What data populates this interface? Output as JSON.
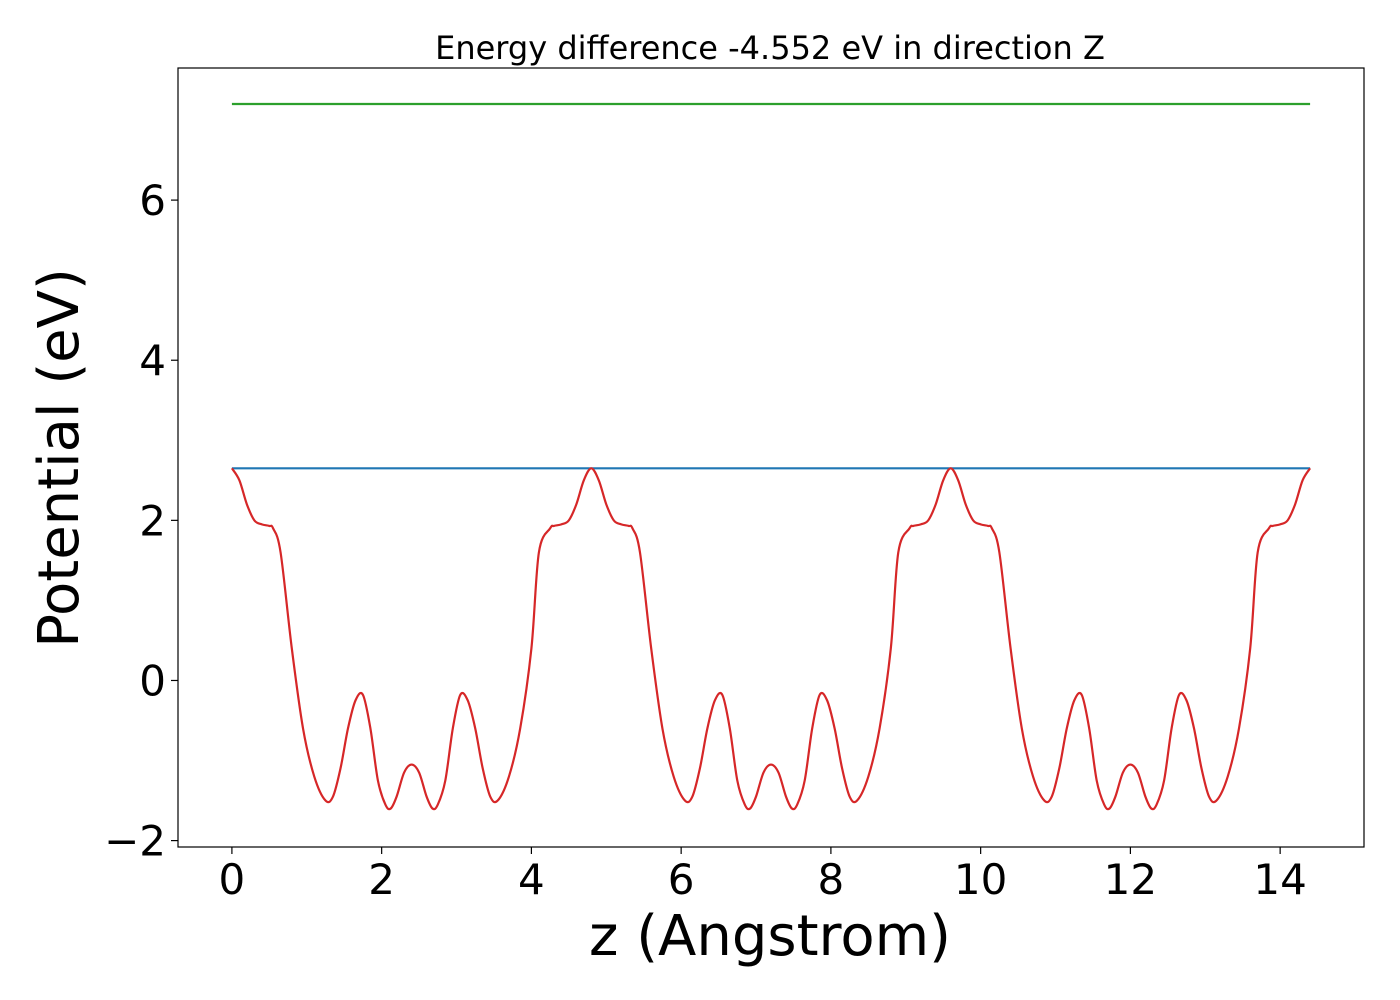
{
  "chart_data": {
    "type": "line",
    "title": "Energy difference -4.552 eV in direction Z",
    "xlabel": "z (Angstrom)",
    "ylabel": "Potential (eV)",
    "xlim": [
      -0.72,
      15.12
    ],
    "ylim": [
      -2.08,
      7.65
    ],
    "xticks": [
      0,
      2,
      4,
      6,
      8,
      10,
      12,
      14
    ],
    "yticks": [
      -2,
      0,
      2,
      4,
      6
    ],
    "xtick_labels": [
      "0",
      "2",
      "4",
      "6",
      "8",
      "10",
      "12",
      "14"
    ],
    "ytick_labels": [
      "−2",
      "0",
      "2",
      "4",
      "6"
    ],
    "grid": false,
    "series": [
      {
        "color": "#2ca02c",
        "x": [
          0.0,
          14.4
        ],
        "y": [
          7.2,
          7.2
        ]
      },
      {
        "color": "#1f77b4",
        "x": [
          0.0,
          14.4
        ],
        "y": [
          2.65,
          2.65
        ]
      },
      {
        "color": "#d62728",
        "period": 4.8,
        "x": [
          0.0,
          0.1,
          0.2,
          0.3,
          0.4,
          0.5,
          0.55,
          0.65,
          0.8,
          0.95,
          1.1,
          1.25,
          1.35,
          1.45,
          1.55,
          1.65,
          1.75,
          1.85,
          1.95,
          2.05,
          2.12,
          2.2,
          2.3,
          2.4,
          2.5,
          2.6,
          2.68,
          2.75,
          2.85,
          2.95,
          3.05,
          3.15,
          3.25,
          3.35,
          3.45,
          3.55,
          3.7,
          3.85,
          4.0,
          4.1,
          4.25,
          4.3,
          4.4,
          4.5,
          4.6,
          4.7,
          4.8
        ],
        "y": [
          2.65,
          2.5,
          2.2,
          2.0,
          1.95,
          1.93,
          1.9,
          1.6,
          0.4,
          -0.6,
          -1.2,
          -1.5,
          -1.45,
          -1.1,
          -0.6,
          -0.25,
          -0.18,
          -0.6,
          -1.25,
          -1.55,
          -1.6,
          -1.45,
          -1.15,
          -1.05,
          -1.15,
          -1.45,
          -1.6,
          -1.55,
          -1.25,
          -0.6,
          -0.18,
          -0.25,
          -0.6,
          -1.1,
          -1.45,
          -1.5,
          -1.2,
          -0.6,
          0.4,
          1.6,
          1.9,
          1.93,
          1.95,
          2.0,
          2.2,
          2.5,
          2.65
        ]
      }
    ]
  }
}
